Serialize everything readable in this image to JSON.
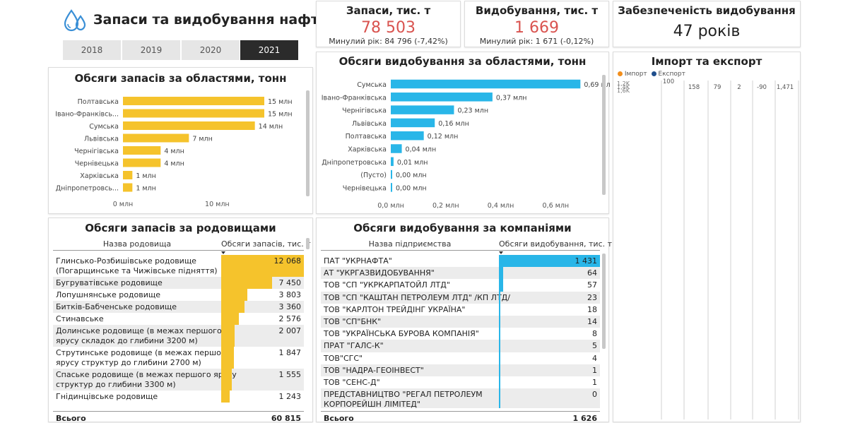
{
  "header": {
    "title": "Запаси та видобування нафти",
    "icon": "water-drops-icon"
  },
  "years": {
    "items": [
      "2018",
      "2019",
      "2020",
      "2021"
    ],
    "active": "2021"
  },
  "kpi": {
    "reserves": {
      "title": "Запаси, тис. т",
      "value": "78 503",
      "sub": "Минулий рік: 84 796 (-7,42%)"
    },
    "production": {
      "title": "Видобування, тис. т",
      "value": "1 669",
      "sub": "Минулий рік: 1 671 (-0,12%)"
    },
    "supply": {
      "title": "Забезпеченість видобування",
      "value": "47 років"
    }
  },
  "colors": {
    "yellow": "#f5c32c",
    "blue": "#29b6e8",
    "import": "#f28e1c",
    "export": "#1f4e8c",
    "red": "#d9534f"
  },
  "chart_data": [
    {
      "type": "bar",
      "orientation": "horizontal",
      "title": "Обсяги запасів за областями, тонн",
      "categories": [
        "Полтавська",
        "Івано-Франківсь...",
        "Сумська",
        "Львівська",
        "Чернігівська",
        "Чернівецька",
        "Харківська",
        "Дніпропетровсь..."
      ],
      "values": [
        15,
        15,
        14,
        7,
        4,
        4,
        1,
        1
      ],
      "labels": [
        "15 млн",
        "15 млн",
        "14 млн",
        "7 млн",
        "4 млн",
        "4 млн",
        "1 млн",
        "1 млн"
      ],
      "xticks": [
        "0 млн",
        "10 млн"
      ],
      "xtick_values": [
        0,
        10
      ],
      "xlim": [
        0,
        16.5
      ],
      "color": "#f5c32c"
    },
    {
      "type": "bar",
      "orientation": "horizontal",
      "title": "Обсяги видобування за областями, тонн",
      "categories": [
        "Сумська",
        "Івано-Франківська",
        "Чернігівська",
        "Львівська",
        "Полтавська",
        "Харківська",
        "Дніпропетровська",
        "(Пусто)",
        "Чернівецька"
      ],
      "values": [
        0.69,
        0.37,
        0.23,
        0.16,
        0.12,
        0.04,
        0.01,
        0.0,
        0.0
      ],
      "labels": [
        "0,69 млн",
        "0,37 млн",
        "0,23 млн",
        "0,16 млн",
        "0,12 млн",
        "0,04 млн",
        "0,01 млн",
        "0,00 млн",
        "0,00 млн"
      ],
      "xticks": [
        "0,0 млн",
        "0,2 млн",
        "0,4 млн",
        "0,6 млн"
      ],
      "xtick_values": [
        0,
        0.2,
        0.4,
        0.6
      ],
      "xlim": [
        0,
        0.72
      ],
      "color": "#29b6e8"
    },
    {
      "type": "table",
      "title": "Обсяги запасів за родовищами",
      "columns": [
        "Назва родовища",
        "Обсяги запасів, тис. т"
      ],
      "rows": [
        {
          "name": [
            "Глинсько-Розбишівське родовище",
            "(Погарщинське та Чижівське підняття)"
          ],
          "value": 12068,
          "label": "12 068"
        },
        {
          "name": [
            "Бугруватівське родовище"
          ],
          "value": 7450,
          "label": "7 450"
        },
        {
          "name": [
            "Лопушнянське родовище"
          ],
          "value": 3803,
          "label": "3 803"
        },
        {
          "name": [
            "Битків-Бабченське родовище"
          ],
          "value": 3360,
          "label": "3 360"
        },
        {
          "name": [
            "Стинавське"
          ],
          "value": 2576,
          "label": "2 576"
        },
        {
          "name": [
            "Долинське родовище (в межах першого",
            "ярусу складок до глибини 3200 м)"
          ],
          "value": 2007,
          "label": "2 007"
        },
        {
          "name": [
            "Струтинське родовище (в межах першого",
            "ярусу структур до глибини 2700 м)"
          ],
          "value": 1847,
          "label": "1 847"
        },
        {
          "name": [
            "Спаське родовище (в межах першого ярусу",
            "структур до глибини 3300 м)"
          ],
          "value": 1555,
          "label": "1 555"
        },
        {
          "name": [
            "Гнідинцівське родовище"
          ],
          "value": 1243,
          "label": "1 243"
        }
      ],
      "total_label": "Всього",
      "total": "60 815",
      "color": "#f5c32c"
    },
    {
      "type": "table",
      "title": "Обсяги видобування за компаніями",
      "columns": [
        "Назва підприємства",
        "Обсяги видобування, тис. т"
      ],
      "rows": [
        {
          "name": [
            "ПАТ \"УКРНАФТА\""
          ],
          "value": 1431,
          "label": "1 431"
        },
        {
          "name": [
            "АТ \"УКРГАЗВИДОБУВАННЯ\""
          ],
          "value": 64,
          "label": "64"
        },
        {
          "name": [
            "ТОВ \"СП \"УКРКАРПАТОЙЛ ЛТД\""
          ],
          "value": 57,
          "label": "57"
        },
        {
          "name": [
            "ТОВ \"СП \"КАШТАН ПЕТРОЛЕУМ ЛТД\" /КП ЛТД/"
          ],
          "value": 23,
          "label": "23"
        },
        {
          "name": [
            "ТОВ \"КАРЛТОН ТРЕЙДІНГ УКРАЇНА\""
          ],
          "value": 18,
          "label": "18"
        },
        {
          "name": [
            "ТОВ \"СП\"БНК\""
          ],
          "value": 14,
          "label": "14"
        },
        {
          "name": [
            "ТОВ \"УКРАЇНСЬКА БУРОВА КОМПАНІЯ\""
          ],
          "value": 8,
          "label": "8"
        },
        {
          "name": [
            "ПРАТ \"ГАЛС-К\""
          ],
          "value": 5,
          "label": "5"
        },
        {
          "name": [
            "ТОВ\"СГС\""
          ],
          "value": 4,
          "label": "4"
        },
        {
          "name": [
            "ТОВ \"НАДРА-ГЕОІНВЕСТ\""
          ],
          "value": 1,
          "label": "1"
        },
        {
          "name": [
            "ТОВ \"СЕНС-Д\""
          ],
          "value": 1,
          "label": "1"
        },
        {
          "name": [
            "ПРЕДСТАВНИЦТВО \"РЕГАЛ ПЕТРОЛЕУМ",
            "КОРПОРЕЙШН ЛІМІТЕД\""
          ],
          "value": 0,
          "label": "0"
        }
      ],
      "total_label": "Всього",
      "total": "1 626",
      "color": "#29b6e8"
    },
    {
      "type": "line",
      "title": "Імпорт та експорт",
      "legend": [
        "Імпорт",
        "Експорт"
      ],
      "yticks": [
        "1,2K",
        "1,4K",
        "1,6K"
      ],
      "values": [
        "100",
        "158",
        "79",
        "2",
        "-90",
        "1,471"
      ]
    }
  ]
}
